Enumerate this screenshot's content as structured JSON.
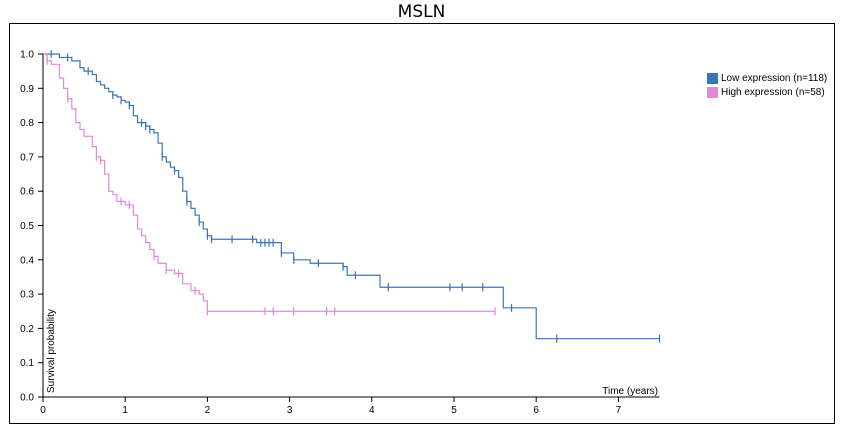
{
  "chart_data": {
    "type": "line",
    "title": "MSLN",
    "xlabel": "Time (years)",
    "ylabel": "Survival probability",
    "xlim": [
      0,
      7.5
    ],
    "ylim": [
      0,
      1.0
    ],
    "xticks": [
      "0",
      "1",
      "2",
      "3",
      "4",
      "5",
      "6",
      "7"
    ],
    "yticks": [
      "0.0",
      "0.1",
      "0.2",
      "0.3",
      "0.4",
      "0.5",
      "0.6",
      "0.7",
      "0.8",
      "0.9",
      "1.0"
    ],
    "legend_position": "top-right",
    "series": [
      {
        "name": "Low expression (n=118)",
        "color": "#3a75b8",
        "steps": [
          [
            0,
            1.0
          ],
          [
            0.2,
            0.99
          ],
          [
            0.35,
            0.98
          ],
          [
            0.45,
            0.96
          ],
          [
            0.5,
            0.95
          ],
          [
            0.6,
            0.94
          ],
          [
            0.65,
            0.92
          ],
          [
            0.7,
            0.91
          ],
          [
            0.75,
            0.9
          ],
          [
            0.8,
            0.89
          ],
          [
            0.85,
            0.88
          ],
          [
            0.9,
            0.875
          ],
          [
            0.95,
            0.865
          ],
          [
            1.0,
            0.86
          ],
          [
            1.05,
            0.85
          ],
          [
            1.1,
            0.82
          ],
          [
            1.15,
            0.8
          ],
          [
            1.25,
            0.79
          ],
          [
            1.3,
            0.78
          ],
          [
            1.35,
            0.77
          ],
          [
            1.4,
            0.74
          ],
          [
            1.45,
            0.7
          ],
          [
            1.5,
            0.685
          ],
          [
            1.55,
            0.67
          ],
          [
            1.6,
            0.66
          ],
          [
            1.65,
            0.64
          ],
          [
            1.7,
            0.6
          ],
          [
            1.75,
            0.57
          ],
          [
            1.8,
            0.55
          ],
          [
            1.85,
            0.53
          ],
          [
            1.9,
            0.51
          ],
          [
            1.95,
            0.49
          ],
          [
            2.0,
            0.47
          ],
          [
            2.05,
            0.46
          ],
          [
            2.6,
            0.45
          ],
          [
            2.9,
            0.42
          ],
          [
            3.05,
            0.4
          ],
          [
            3.25,
            0.39
          ],
          [
            3.65,
            0.38
          ],
          [
            3.7,
            0.355
          ],
          [
            4.1,
            0.32
          ],
          [
            5.6,
            0.26
          ],
          [
            6.0,
            0.17
          ],
          [
            7.5,
            0.17
          ]
        ],
        "censor_x": [
          0.1,
          0.3,
          0.55,
          0.85,
          0.95,
          1.05,
          1.2,
          1.25,
          1.3,
          1.45,
          1.6,
          1.75,
          1.9,
          2.0,
          2.05,
          2.3,
          2.55,
          2.65,
          2.7,
          2.75,
          2.8,
          2.9,
          3.05,
          3.35,
          3.65,
          3.8,
          4.2,
          4.95,
          5.1,
          5.35,
          5.7,
          6.25,
          7.5
        ]
      },
      {
        "name": "High expression (n=58)",
        "color": "#e08ad8",
        "steps": [
          [
            0,
            1.0
          ],
          [
            0.05,
            0.98
          ],
          [
            0.1,
            0.97
          ],
          [
            0.2,
            0.93
          ],
          [
            0.25,
            0.9
          ],
          [
            0.3,
            0.87
          ],
          [
            0.35,
            0.84
          ],
          [
            0.4,
            0.8
          ],
          [
            0.45,
            0.78
          ],
          [
            0.5,
            0.76
          ],
          [
            0.6,
            0.73
          ],
          [
            0.65,
            0.7
          ],
          [
            0.7,
            0.69
          ],
          [
            0.75,
            0.65
          ],
          [
            0.8,
            0.6
          ],
          [
            0.85,
            0.59
          ],
          [
            0.9,
            0.57
          ],
          [
            1.0,
            0.56
          ],
          [
            1.1,
            0.53
          ],
          [
            1.15,
            0.49
          ],
          [
            1.2,
            0.47
          ],
          [
            1.25,
            0.45
          ],
          [
            1.3,
            0.43
          ],
          [
            1.35,
            0.41
          ],
          [
            1.4,
            0.39
          ],
          [
            1.5,
            0.37
          ],
          [
            1.6,
            0.36
          ],
          [
            1.7,
            0.33
          ],
          [
            1.8,
            0.31
          ],
          [
            1.9,
            0.3
          ],
          [
            1.95,
            0.28
          ],
          [
            2.0,
            0.25
          ],
          [
            5.5,
            0.25
          ]
        ],
        "censor_x": [
          0.05,
          0.3,
          0.65,
          0.7,
          0.95,
          1.05,
          1.35,
          1.5,
          1.65,
          1.85,
          2.0,
          2.7,
          2.8,
          3.05,
          3.45,
          3.55,
          5.5
        ]
      }
    ]
  }
}
